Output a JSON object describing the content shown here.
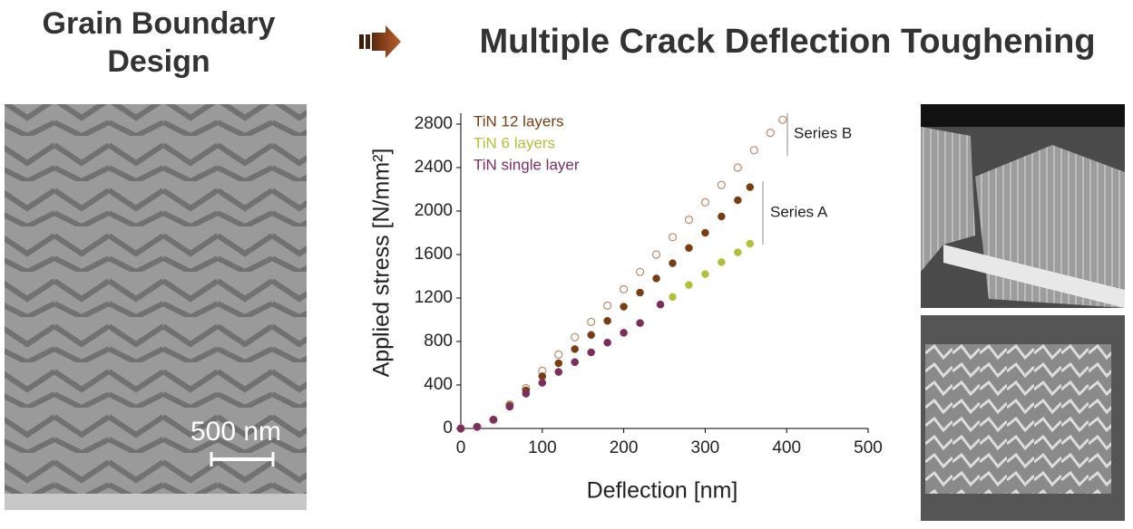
{
  "header": {
    "left_title": [
      "Grain Boundary",
      "Design"
    ],
    "right_title": "Multiple Crack Deflection Toughening"
  },
  "micrograph": {
    "scale_bar": "500 nm"
  },
  "chart_data": {
    "type": "scatter",
    "x_label": "Deflection [nm]",
    "y_label": "Applied stress [N/mm²]",
    "xlim": [
      0,
      500
    ],
    "xticks": [
      0,
      100,
      200,
      300,
      400,
      500
    ],
    "ylim": [
      0,
      2900
    ],
    "yticks": [
      0,
      400,
      800,
      1200,
      1600,
      2000,
      2400,
      2800
    ],
    "annotations": [
      "Series B",
      "Series A"
    ],
    "series": [
      {
        "color": "#b88a6a",
        "marker": "open",
        "x": [
          0,
          20,
          40,
          60,
          80,
          100,
          120,
          140,
          160,
          180,
          200,
          220,
          240,
          260,
          280,
          300,
          320,
          340,
          360,
          380,
          395
        ],
        "values": [
          0,
          15,
          80,
          220,
          370,
          530,
          680,
          840,
          980,
          1130,
          1280,
          1440,
          1600,
          1760,
          1920,
          2080,
          2240,
          2400,
          2560,
          2720,
          2840
        ]
      },
      {
        "name": "TiN 12 layers",
        "color": "#7a3d12",
        "marker": "filled",
        "x": [
          0,
          20,
          40,
          60,
          80,
          100,
          120,
          140,
          160,
          180,
          200,
          220,
          240,
          260,
          280,
          300,
          320,
          340,
          355
        ],
        "values": [
          0,
          15,
          80,
          210,
          350,
          480,
          600,
          730,
          860,
          990,
          1120,
          1250,
          1380,
          1520,
          1660,
          1800,
          1950,
          2100,
          2220
        ]
      },
      {
        "name": "TiN 6 layers",
        "color": "#b3bf3a",
        "marker": "filled",
        "x": [
          0,
          20,
          40,
          60,
          80,
          100,
          120,
          140,
          160,
          180,
          200,
          220,
          245,
          260,
          280,
          300,
          320,
          340,
          355
        ],
        "values": [
          0,
          15,
          80,
          200,
          320,
          420,
          520,
          610,
          700,
          790,
          880,
          970,
          1140,
          1210,
          1320,
          1420,
          1530,
          1620,
          1700
        ]
      },
      {
        "name": "TiN  single layer",
        "color": "#7b2e5f",
        "marker": "filled",
        "x": [
          0,
          20,
          40,
          60,
          80,
          100,
          120,
          140,
          160,
          180,
          200,
          220,
          245
        ],
        "values": [
          0,
          15,
          80,
          200,
          320,
          420,
          520,
          610,
          700,
          790,
          880,
          970,
          1140
        ]
      }
    ]
  }
}
